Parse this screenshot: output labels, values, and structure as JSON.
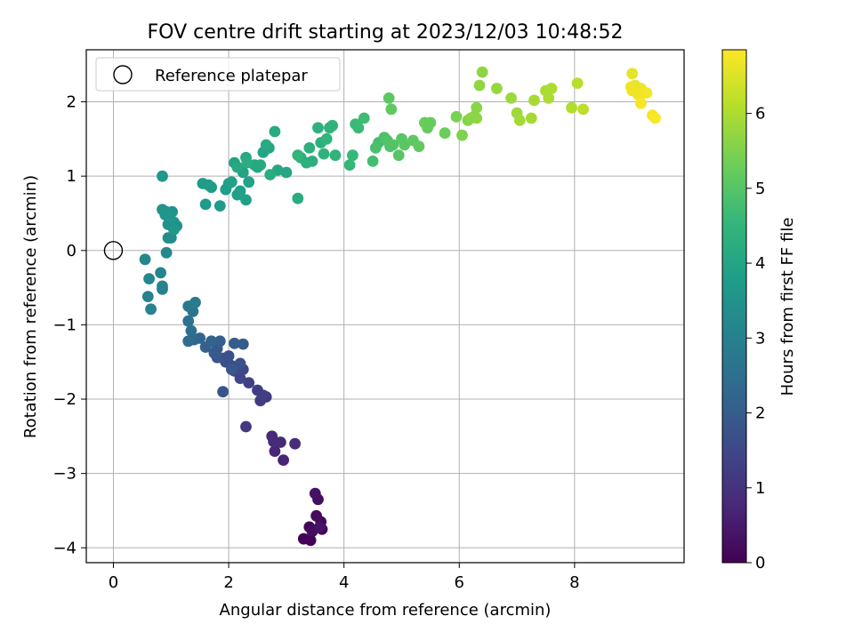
{
  "chart_data": {
    "type": "scatter",
    "title": "FOV centre drift starting at 2023/12/03 10:48:52",
    "xlabel": "Angular distance from reference (arcmin)",
    "ylabel": "Rotation from reference (arcmin)",
    "xlim": [
      -0.47,
      9.9
    ],
    "ylim": [
      -4.2,
      2.7
    ],
    "xticks": [
      0,
      2,
      4,
      6,
      8
    ],
    "yticks": [
      -4,
      -3,
      -2,
      -1,
      0,
      1,
      2
    ],
    "xtick_labels": [
      "0",
      "2",
      "4",
      "6",
      "8"
    ],
    "ytick_labels": [
      "−4",
      "−3",
      "−2",
      "−1",
      "0",
      "1",
      "2"
    ],
    "grid": true,
    "legend": {
      "location": "top-left",
      "entries": [
        "Reference platepar"
      ]
    },
    "reference_point": {
      "x": 0,
      "y": 0
    },
    "colorbar": {
      "label": "Hours from first FF file",
      "range": [
        0,
        6.85
      ],
      "ticks": [
        0,
        1,
        2,
        3,
        4,
        5,
        6
      ],
      "tick_labels": [
        "0",
        "1",
        "2",
        "3",
        "4",
        "5",
        "6"
      ],
      "colormap": "viridis",
      "colormap_stops": [
        "#440154",
        "#482878",
        "#3e4989",
        "#31688e",
        "#26828e",
        "#1f9e89",
        "#35b779",
        "#6ece58",
        "#b5de2b",
        "#fde725"
      ]
    },
    "series": [
      {
        "x": [
          3.3,
          3.42,
          3.62,
          3.4,
          3.6,
          3.52,
          3.45,
          3.55,
          3.5,
          3.58,
          2.95,
          2.8,
          2.9,
          2.75,
          2.78,
          3.15,
          2.3,
          2.65,
          2.55,
          2.6,
          2.5,
          2.35,
          2.2,
          2.1,
          2.25,
          2.15,
          2.05,
          1.95,
          1.9,
          2.0,
          2.2,
          1.9,
          1.8,
          2.05,
          1.8,
          1.75,
          2.25,
          2.1,
          1.85,
          1.6,
          1.7,
          1.5,
          1.4,
          1.3,
          1.35,
          1.3,
          1.38,
          1.3,
          1.42,
          0.85,
          0.65,
          0.6,
          0.85,
          0.82,
          0.62,
          0.55,
          0.92,
          0.95,
          1.0,
          1.1,
          1.05,
          0.95,
          1.02,
          0.9,
          0.85,
          0.92,
          0.98,
          1.05,
          0.85,
          1.6,
          1.85,
          1.7,
          1.55,
          1.65,
          1.95,
          2.0,
          2.2,
          2.3,
          2.15,
          2.05,
          2.1,
          2.25,
          2.35,
          2.5,
          2.6,
          2.7,
          2.85,
          3.0,
          2.45,
          2.3,
          2.15,
          2.55,
          2.65,
          2.8,
          3.2,
          2.72,
          2.32,
          3.25,
          3.35,
          3.45,
          3.4,
          3.6,
          3.55,
          3.75,
          3.8,
          3.65,
          3.7,
          3.85,
          3.2,
          4.1,
          4.15,
          4.2,
          4.25,
          4.35,
          4.5,
          4.6,
          4.55,
          4.7,
          4.75,
          4.8,
          4.85,
          4.95,
          5.0,
          5.05,
          5.2,
          5.3,
          5.45,
          5.5,
          5.4,
          5.75,
          4.78,
          4.82,
          5.95,
          6.05,
          6.15,
          6.25,
          6.3,
          6.4,
          6.3,
          6.2,
          6.35,
          6.65,
          6.9,
          7.0,
          7.05,
          7.25,
          7.3,
          7.5,
          7.55,
          7.6,
          7.95,
          8.05,
          8.15,
          9.0,
          9.05,
          9.15,
          9.2,
          9.0,
          9.1,
          8.98,
          9.25,
          9.15,
          9.35,
          9.4
        ],
        "y": [
          -3.88,
          -3.9,
          -3.75,
          -3.72,
          -3.65,
          -3.57,
          -3.78,
          -3.35,
          -3.27,
          -3.72,
          -2.82,
          -2.7,
          -2.58,
          -2.5,
          -2.57,
          -2.6,
          -2.37,
          -1.97,
          -2.02,
          -1.95,
          -1.88,
          -1.78,
          -1.72,
          -1.62,
          -1.6,
          -1.58,
          -1.55,
          -1.5,
          -1.45,
          -1.42,
          -1.52,
          -1.9,
          -1.44,
          -1.6,
          -1.32,
          -1.38,
          -1.26,
          -1.25,
          -1.22,
          -1.3,
          -1.22,
          -1.18,
          -1.2,
          -1.22,
          -1.08,
          -0.95,
          -0.82,
          -0.75,
          -0.7,
          -0.52,
          -0.79,
          -0.62,
          -0.48,
          -0.3,
          -0.38,
          -0.12,
          -0.03,
          0.17,
          0.17,
          0.33,
          0.38,
          0.35,
          0.52,
          0.48,
          0.55,
          0.52,
          0.45,
          0.28,
          1.0,
          0.62,
          0.6,
          0.85,
          0.9,
          0.88,
          0.82,
          0.9,
          0.8,
          0.68,
          0.75,
          0.92,
          1.18,
          1.05,
          0.92,
          1.12,
          1.32,
          1.38,
          1.08,
          1.05,
          1.15,
          1.25,
          1.12,
          1.15,
          1.42,
          1.6,
          0.7,
          1.02,
          1.18,
          1.25,
          1.18,
          1.2,
          1.38,
          1.45,
          1.65,
          1.65,
          1.68,
          1.3,
          1.5,
          1.28,
          1.28,
          1.15,
          1.28,
          1.7,
          1.65,
          1.78,
          1.2,
          1.45,
          1.38,
          1.52,
          1.48,
          1.4,
          1.42,
          1.28,
          1.5,
          1.42,
          1.48,
          1.4,
          1.65,
          1.72,
          1.72,
          1.58,
          2.05,
          1.9,
          1.8,
          1.55,
          1.75,
          1.8,
          1.92,
          2.4,
          1.78,
          1.78,
          2.22,
          2.18,
          2.05,
          1.85,
          1.75,
          1.78,
          2.02,
          2.15,
          2.05,
          2.18,
          1.92,
          2.25,
          1.9,
          2.38,
          2.22,
          2.18,
          2.12,
          2.15,
          2.1,
          2.2,
          2.12,
          1.98,
          1.82,
          1.78
        ],
        "hours": [
          0.0,
          0.04,
          0.08,
          0.12,
          0.16,
          0.2,
          0.24,
          0.28,
          0.32,
          0.36,
          0.7,
          0.74,
          0.78,
          0.82,
          0.86,
          0.9,
          1.12,
          1.18,
          1.22,
          1.26,
          1.3,
          1.34,
          1.42,
          1.46,
          1.5,
          1.54,
          1.58,
          1.62,
          1.66,
          1.7,
          1.74,
          1.78,
          1.82,
          1.86,
          1.9,
          1.94,
          1.98,
          2.02,
          2.06,
          2.1,
          2.14,
          2.2,
          2.3,
          2.4,
          2.5,
          2.6,
          2.68,
          2.76,
          2.84,
          3.0,
          3.04,
          3.08,
          3.1,
          3.12,
          3.14,
          3.18,
          3.24,
          3.3,
          3.36,
          3.42,
          3.44,
          3.46,
          3.48,
          3.5,
          3.52,
          3.54,
          3.58,
          3.62,
          3.66,
          3.7,
          3.72,
          3.74,
          3.76,
          3.78,
          3.8,
          3.82,
          3.84,
          3.86,
          3.88,
          3.9,
          3.92,
          3.94,
          3.96,
          3.98,
          4.0,
          4.02,
          4.04,
          4.06,
          4.08,
          4.1,
          4.12,
          4.14,
          4.16,
          4.18,
          4.2,
          4.22,
          4.24,
          4.26,
          4.28,
          4.3,
          4.32,
          4.34,
          4.36,
          4.38,
          4.4,
          4.42,
          4.44,
          4.46,
          4.48,
          4.55,
          4.6,
          4.62,
          4.65,
          4.7,
          4.75,
          4.8,
          4.85,
          4.88,
          4.92,
          4.95,
          4.98,
          5.02,
          5.05,
          5.08,
          5.1,
          5.15,
          5.2,
          5.22,
          5.25,
          5.28,
          5.1,
          5.12,
          5.45,
          5.5,
          5.55,
          5.6,
          5.62,
          5.68,
          5.66,
          5.64,
          5.7,
          5.75,
          5.8,
          5.85,
          5.88,
          5.9,
          5.92,
          5.95,
          5.98,
          6.0,
          6.05,
          6.1,
          6.15,
          6.6,
          6.62,
          6.65,
          6.68,
          6.7,
          6.72,
          6.7,
          6.75,
          6.78,
          6.8,
          6.82
        ]
      }
    ]
  }
}
